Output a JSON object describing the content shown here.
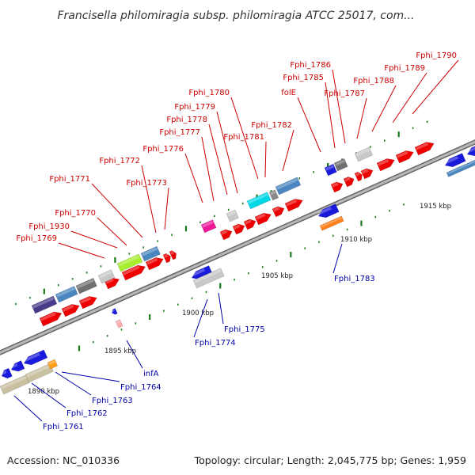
{
  "title": "Francisella philomiragia subsp. philomiragia ATCC 25017, com...",
  "footer": {
    "accession": "Accession: NC_010336",
    "summary": "Topology: circular; Length: 2,045,775 bp; Genes: 1,959"
  },
  "colors": {
    "upper_label": "#cc0000",
    "lower_label": "#0000aa",
    "backbone": "#8a8a8a",
    "tick": "#1a7a1a",
    "forward_gene": "#ee0000",
    "reverse_gene": "#1a1adc"
  },
  "scale_labels": [
    "1890 kbp",
    "1895 kbp",
    "1900 kbp",
    "1905 kbp",
    "1910 kbp",
    "1915 kbp"
  ],
  "upper_genes": [
    "Fphi_1769",
    "Fphi_1930",
    "Fphi_1770",
    "Fphi_1771",
    "Fphi_1772",
    "Fphi_1773",
    "Fphi_1776",
    "Fphi_1777",
    "Fphi_1778",
    "Fphi_1779",
    "Fphi_1780",
    "Fphi_1781",
    "Fphi_1782",
    "folE",
    "Fphi_1785",
    "Fphi_1786",
    "Fphi_1787",
    "Fphi_1788",
    "Fphi_1789",
    "Fphi_1790"
  ],
  "lower_genes": [
    "Fphi_1761",
    "Fphi_1762",
    "Fphi_1763",
    "Fphi_1764",
    "infA",
    "Fphi_1774",
    "Fphi_1775",
    "Fphi_1783"
  ]
}
